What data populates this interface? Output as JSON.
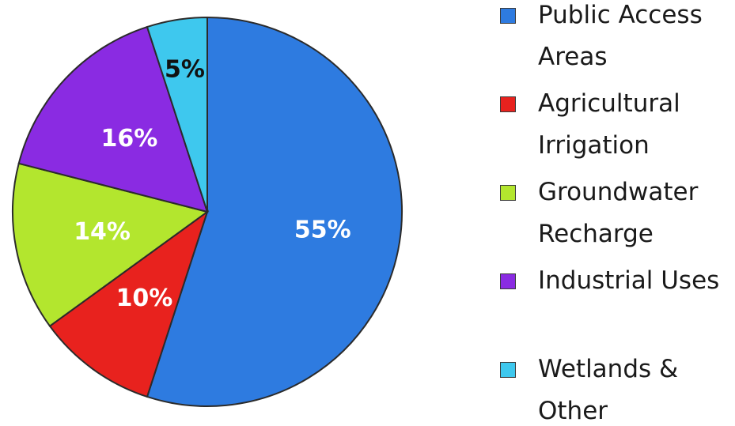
{
  "chart_data": {
    "type": "pie",
    "start_angle_deg": 0,
    "direction": "clockwise",
    "legend_position": "right",
    "slices": [
      {
        "label": "Public Access\nAreas",
        "value": 55,
        "value_label": "55%",
        "color": "#2E7BE0",
        "label_color": "#ffffff"
      },
      {
        "label": "Agricultural\nIrrigation",
        "value": 10,
        "value_label": "10%",
        "color": "#E8221E",
        "label_color": "#ffffff"
      },
      {
        "label": "Groundwater\nRecharge",
        "value": 14,
        "value_label": "14%",
        "color": "#B3E62E",
        "label_color": "#ffffff"
      },
      {
        "label": "Industrial Uses",
        "value": 16,
        "value_label": "16%",
        "color": "#8A2BE2",
        "label_color": "#ffffff"
      },
      {
        "label": "Wetlands &\nOther",
        "value": 5,
        "value_label": "5%",
        "color": "#3EC8EE",
        "label_color": "#111111"
      }
    ]
  }
}
